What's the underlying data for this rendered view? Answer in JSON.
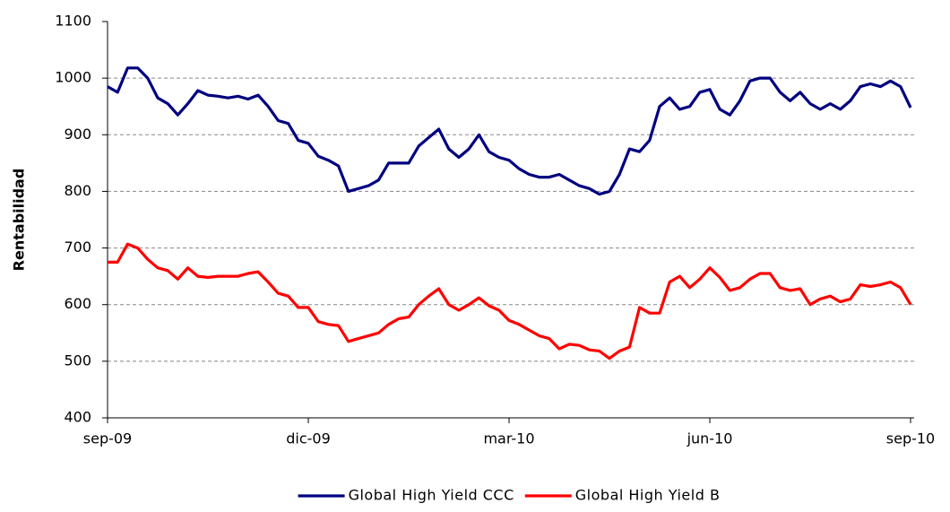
{
  "chart_data": {
    "type": "line",
    "y_label": "Rentabilidad",
    "categories": [
      "sep-09",
      null,
      null,
      null,
      null,
      null,
      null,
      null,
      null,
      null,
      null,
      null,
      null,
      null,
      null,
      null,
      null,
      null,
      null,
      null,
      "dic-09",
      null,
      null,
      null,
      null,
      null,
      null,
      null,
      null,
      null,
      null,
      null,
      null,
      null,
      null,
      null,
      null,
      null,
      null,
      null,
      "mar-10",
      null,
      null,
      null,
      null,
      null,
      null,
      null,
      null,
      null,
      null,
      null,
      null,
      null,
      null,
      null,
      null,
      null,
      null,
      null,
      "jun-10",
      null,
      null,
      null,
      null,
      null,
      null,
      null,
      null,
      null,
      null,
      null,
      null,
      null,
      null,
      null,
      null,
      null,
      null,
      null,
      "sep-10"
    ],
    "series": [
      {
        "name": "Global High Yield CCC",
        "color": "#000080",
        "values": [
          985,
          975,
          1018,
          1018,
          1000,
          965,
          955,
          935,
          955,
          978,
          970,
          968,
          965,
          968,
          963,
          970,
          950,
          925,
          920,
          890,
          885,
          862,
          855,
          845,
          800,
          805,
          810,
          820,
          850,
          850,
          850,
          880,
          895,
          910,
          875,
          860,
          875,
          900,
          870,
          860,
          855,
          840,
          830,
          825,
          825,
          830,
          820,
          810,
          805,
          795,
          800,
          830,
          875,
          870,
          890,
          950,
          965,
          945,
          950,
          975,
          980,
          945,
          935,
          960,
          995,
          1000,
          1000,
          975,
          960,
          975,
          955,
          945,
          955,
          945,
          960,
          985,
          990,
          985,
          995,
          985,
          948
        ]
      },
      {
        "name": "Global High Yield B",
        "color": "#ff0000",
        "values": [
          675,
          675,
          707,
          700,
          680,
          665,
          660,
          645,
          665,
          650,
          648,
          650,
          650,
          650,
          655,
          658,
          640,
          620,
          615,
          595,
          595,
          570,
          565,
          563,
          535,
          540,
          545,
          550,
          565,
          575,
          578,
          600,
          615,
          628,
          600,
          590,
          600,
          612,
          598,
          590,
          572,
          565,
          555,
          545,
          540,
          522,
          530,
          528,
          520,
          518,
          505,
          518,
          525,
          595,
          585,
          585,
          640,
          650,
          630,
          645,
          665,
          648,
          625,
          630,
          645,
          655,
          655,
          630,
          625,
          628,
          600,
          610,
          615,
          605,
          610,
          635,
          632,
          635,
          640,
          630,
          600
        ]
      }
    ],
    "ylim": [
      400,
      1100
    ],
    "yticks": [
      400,
      500,
      600,
      700,
      800,
      900,
      1000,
      1100
    ],
    "grid": true,
    "legend": "bottom"
  }
}
